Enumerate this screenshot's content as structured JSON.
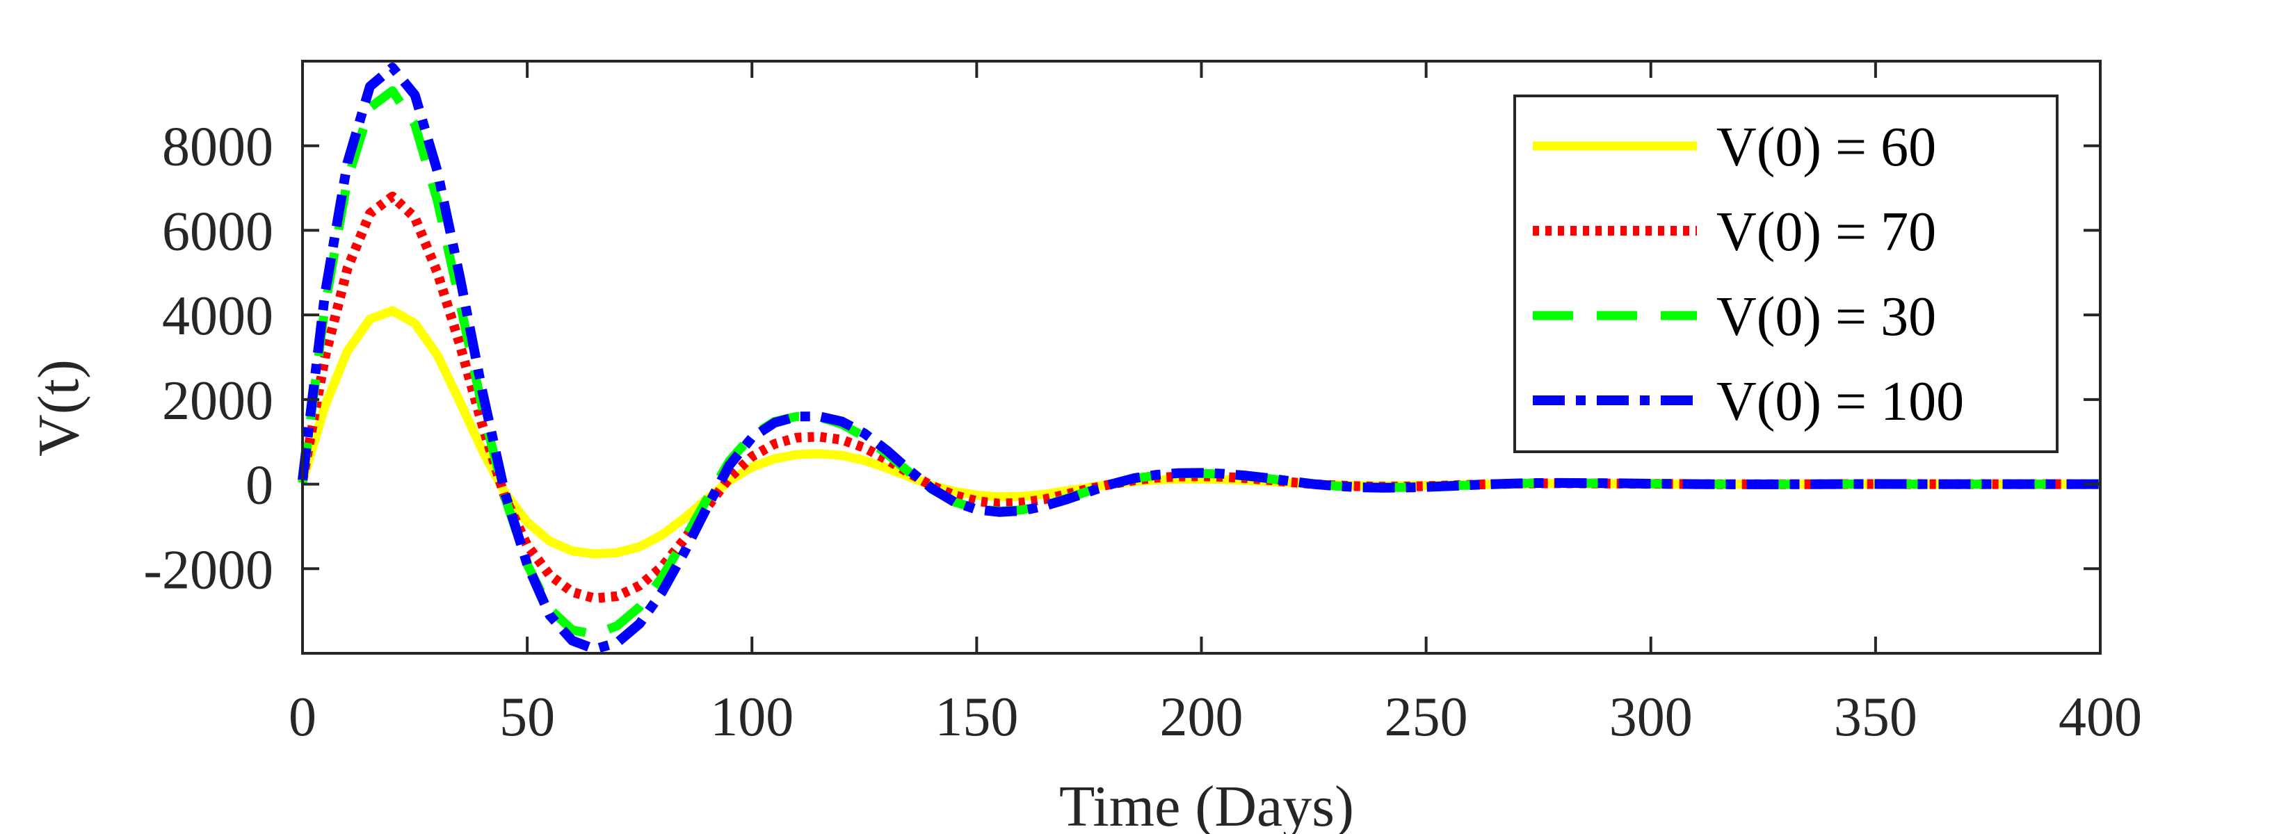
{
  "chart_data": {
    "type": "line",
    "title": "",
    "xlabel": "Time (Days)",
    "ylabel": "V(t)",
    "xlim": [
      0,
      400
    ],
    "ylim": [
      -4000,
      10000
    ],
    "xticks": [
      0,
      50,
      100,
      150,
      200,
      250,
      300,
      350,
      400
    ],
    "xtick_labels": [
      "0",
      "50",
      "100",
      "150",
      "200",
      "250",
      "300",
      "350",
      "400"
    ],
    "yticks": [
      -2000,
      0,
      2000,
      4000,
      6000,
      8000
    ],
    "ytick_labels": [
      "-2000",
      "0",
      "2000",
      "4000",
      "6000",
      "8000"
    ],
    "grid": false,
    "legend_position": "top-right",
    "x": [
      0,
      5,
      10,
      15,
      20,
      25,
      30,
      35,
      40,
      45,
      50,
      55,
      60,
      65,
      70,
      75,
      80,
      85,
      90,
      95,
      100,
      105,
      110,
      115,
      120,
      125,
      130,
      135,
      140,
      145,
      150,
      155,
      160,
      165,
      170,
      175,
      180,
      185,
      190,
      195,
      200,
      205,
      210,
      215,
      220,
      225,
      230,
      235,
      240,
      245,
      250,
      255,
      260,
      265,
      270,
      275,
      280,
      290,
      300,
      310,
      320,
      330,
      340,
      350,
      360,
      370,
      380,
      390,
      400
    ],
    "series": [
      {
        "name": "V(0) = 60",
        "color": "#ffff00",
        "style": "solid",
        "values": [
          60,
          1850,
          3150,
          3900,
          4100,
          3800,
          3050,
          1950,
          800,
          -200,
          -900,
          -1350,
          -1580,
          -1650,
          -1620,
          -1480,
          -1200,
          -800,
          -350,
          80,
          400,
          600,
          700,
          720,
          680,
          560,
          380,
          170,
          -30,
          -170,
          -260,
          -300,
          -290,
          -240,
          -160,
          -80,
          0,
          60,
          100,
          120,
          120,
          110,
          90,
          60,
          30,
          0,
          -20,
          -35,
          -40,
          -38,
          -30,
          -20,
          -10,
          0,
          8,
          12,
          14,
          10,
          5,
          0,
          -3,
          -2,
          0,
          1,
          0,
          0,
          0,
          0,
          0
        ]
      },
      {
        "name": "V(0) = 70",
        "color": "#ff0000",
        "style": "dotted",
        "values": [
          70,
          3000,
          5100,
          6400,
          6800,
          6300,
          5000,
          3300,
          1400,
          -300,
          -1450,
          -2150,
          -2550,
          -2700,
          -2650,
          -2400,
          -1950,
          -1300,
          -550,
          150,
          650,
          950,
          1100,
          1120,
          1050,
          860,
          580,
          260,
          -40,
          -260,
          -400,
          -460,
          -440,
          -360,
          -240,
          -110,
          0,
          90,
          150,
          180,
          185,
          170,
          140,
          95,
          45,
          0,
          -30,
          -50,
          -60,
          -58,
          -48,
          -32,
          -15,
          0,
          12,
          18,
          20,
          15,
          7,
          0,
          -4,
          -3,
          0,
          1,
          0,
          0,
          0,
          0,
          0
        ]
      },
      {
        "name": "V(0) = 30",
        "color": "#00ff00",
        "style": "dashed",
        "values": [
          30,
          4200,
          7200,
          8900,
          9300,
          8500,
          6700,
          4300,
          1800,
          -300,
          -1900,
          -2950,
          -3450,
          -3550,
          -3350,
          -2900,
          -2200,
          -1300,
          -350,
          550,
          1150,
          1480,
          1600,
          1580,
          1420,
          1120,
          720,
          280,
          -120,
          -420,
          -580,
          -640,
          -610,
          -500,
          -340,
          -160,
          0,
          130,
          210,
          250,
          255,
          235,
          190,
          130,
          60,
          0,
          -45,
          -70,
          -80,
          -78,
          -65,
          -45,
          -20,
          0,
          16,
          24,
          26,
          20,
          9,
          0,
          -5,
          -4,
          0,
          2,
          0,
          0,
          0,
          0,
          0
        ]
      },
      {
        "name": "V(0) = 100",
        "color": "#0000ff",
        "style": "dashdot",
        "values": [
          100,
          4500,
          7600,
          9400,
          9850,
          9200,
          7400,
          4900,
          2200,
          -200,
          -1900,
          -3100,
          -3700,
          -3900,
          -3750,
          -3300,
          -2550,
          -1600,
          -550,
          450,
          1100,
          1450,
          1600,
          1600,
          1480,
          1200,
          800,
          330,
          -100,
          -420,
          -600,
          -660,
          -630,
          -520,
          -360,
          -180,
          0,
          140,
          220,
          260,
          265,
          245,
          200,
          140,
          65,
          0,
          -45,
          -75,
          -85,
          -82,
          -68,
          -46,
          -22,
          0,
          16,
          25,
          28,
          22,
          10,
          0,
          -6,
          -4,
          0,
          2,
          0,
          0,
          0,
          0,
          0
        ]
      }
    ]
  }
}
